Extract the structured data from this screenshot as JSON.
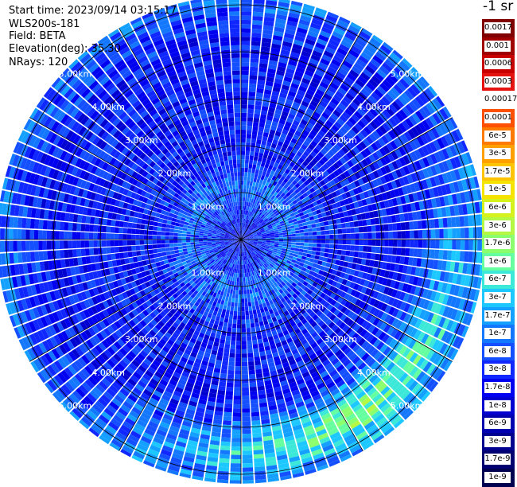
{
  "header": {
    "start_time": "Start time: 2023/09/14 03:15:17",
    "instrument": "WLS200s-181",
    "field": "Field: BETA",
    "elevation": "Elevation(deg): 35.30",
    "nrays": "NRays: 120"
  },
  "chart_data": {
    "type": "heatmap",
    "projection": "polar-ppi",
    "field": "BETA",
    "elevation_deg": 35.3,
    "n_rays": 120,
    "range_rings_km": [
      1,
      2,
      3,
      4,
      5
    ],
    "range_labels": [
      "1.00km",
      "2.00km",
      "3.00km",
      "4.00km",
      "5.00km"
    ],
    "max_range_km": 5.2,
    "spokes_deg": [
      0,
      30,
      60,
      90,
      120,
      150,
      180,
      210,
      240,
      270,
      300,
      330
    ],
    "colorbar": {
      "unit": "-1 sr",
      "tick_labels": [
        "0.0017",
        "0.001",
        "0.0006",
        "0.0003",
        "0.00017",
        "0.0001",
        "6e-5",
        "3e-5",
        "1.7e-5",
        "1e-5",
        "6e-6",
        "3e-6",
        "1.7e-6",
        "1e-6",
        "6e-7",
        "3e-7",
        "1.7e-7",
        "1e-7",
        "6e-8",
        "3e-8",
        "1.7e-8",
        "1e-8",
        "6e-9",
        "3e-9",
        "1.7e-9",
        "1e-9"
      ],
      "colors": [
        "#800000",
        "#a00000",
        "#c80000",
        "#e61410",
        "#ffffff",
        "#ff5000",
        "#ff7a00",
        "#ffa000",
        "#ffc400",
        "#f4e400",
        "#d6f21c",
        "#b4f844",
        "#8cff6c",
        "#66ffa0",
        "#3ce8d8",
        "#1cc8ff",
        "#14a0ff",
        "#1478ff",
        "#1450ff",
        "#1028ff",
        "#0000f0",
        "#0000d0",
        "#0000b0",
        "#000090",
        "#000070",
        "#000050"
      ]
    },
    "field_model": {
      "log10_background": -7.6,
      "arc_center_azimuth_deg": 145,
      "arc_radius_km": 4.4,
      "arc_peak_log10": -5.9
    }
  }
}
